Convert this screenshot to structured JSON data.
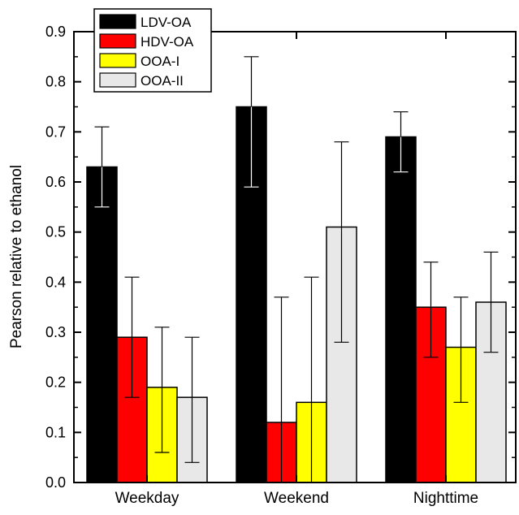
{
  "chart_data": {
    "type": "bar",
    "title": "",
    "xlabel": "",
    "ylabel": "Pearson relative to ethanol",
    "ylim": [
      0,
      0.9
    ],
    "yticks": [
      "0.0",
      "0.1",
      "0.2",
      "0.3",
      "0.4",
      "0.5",
      "0.6",
      "0.7",
      "0.8",
      "0.9"
    ],
    "categories": [
      "Weekday",
      "Weekend",
      "Nighttime"
    ],
    "legend_position": "top-left",
    "grid": false,
    "series": [
      {
        "name": "LDV-OA",
        "color": "#000000",
        "values": [
          0.63,
          0.75,
          0.69
        ],
        "err_low": [
          0.55,
          0.59,
          0.62
        ],
        "err_high": [
          0.71,
          0.85,
          0.74
        ]
      },
      {
        "name": "HDV-OA",
        "color": "#ff0000",
        "values": [
          0.29,
          0.12,
          0.35
        ],
        "err_low": [
          0.17,
          0.0,
          0.25
        ],
        "err_high": [
          0.41,
          0.37,
          0.44
        ]
      },
      {
        "name": "OOA-I",
        "color": "#ffff00",
        "values": [
          0.19,
          0.16,
          0.27
        ],
        "err_low": [
          0.06,
          0.0,
          0.16
        ],
        "err_high": [
          0.31,
          0.41,
          0.37
        ]
      },
      {
        "name": "OOA-II",
        "color": "#e8e8e8",
        "values": [
          0.17,
          0.51,
          0.36
        ],
        "err_low": [
          0.04,
          0.28,
          0.26
        ],
        "err_high": [
          0.29,
          0.68,
          0.46
        ]
      }
    ]
  }
}
